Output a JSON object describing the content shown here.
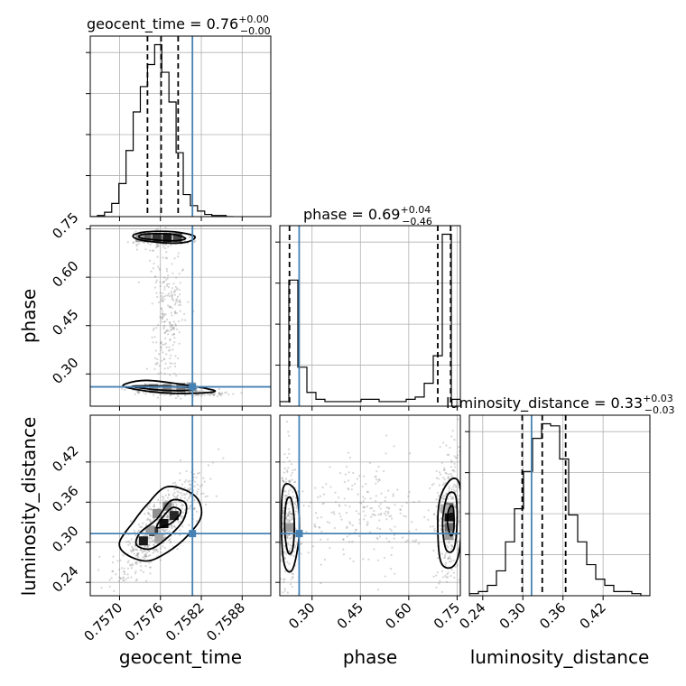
{
  "chart_data": {
    "type": "corner",
    "parameters": [
      "geocent_time",
      "phase",
      "luminosity_distance"
    ],
    "truth": {
      "geocent_time": 0.75807,
      "phase": 0.26,
      "luminosity_distance": 0.313
    },
    "colors": {
      "truth": "#4682b4",
      "hist": "#000000",
      "grid": "#b0b0b0",
      "scatter": "#888888"
    },
    "grid": true,
    "titles": [
      {
        "param": "geocent_time",
        "text": "geocent_time = 0.76",
        "sup": "+0.00",
        "sub": "−0.00"
      },
      {
        "param": "phase",
        "text": "phase = 0.69",
        "sup": "+0.04",
        "sub": "−0.46"
      },
      {
        "param": "luminosity_distance",
        "text": "luminosity_distance = 0.33",
        "sup": "+0.03",
        "sub": "−0.03"
      }
    ],
    "axes": {
      "geocent_time": {
        "label": "geocent_time",
        "range": [
          0.75657,
          0.75922
        ],
        "ticks": [
          0.757,
          0.7576,
          0.7582,
          0.7588
        ],
        "tick_labels": [
          "0.7570",
          "0.7576",
          "0.7582",
          "0.7588"
        ]
      },
      "phase": {
        "label": "phase",
        "range": [
          0.2,
          0.76
        ],
        "ticks": [
          0.3,
          0.45,
          0.6,
          0.75
        ],
        "tick_labels": [
          "0.30",
          "0.45",
          "0.60",
          "0.75"
        ]
      },
      "luminosity_distance": {
        "label": "luminosity_distance",
        "range": [
          0.22,
          0.49
        ],
        "ticks": [
          0.24,
          0.3,
          0.36,
          0.42
        ],
        "tick_labels": [
          "0.24",
          "0.30",
          "0.36",
          "0.42"
        ]
      }
    },
    "hist1d": {
      "geocent_time": {
        "bins": [
          0.75657,
          0.756675,
          0.75678,
          0.756885,
          0.75699,
          0.757095,
          0.7572,
          0.757305,
          0.75741,
          0.757515,
          0.75762,
          0.757725,
          0.75783,
          0.757935,
          0.75804,
          0.758145,
          0.75825,
          0.758355,
          0.75846,
          0.758565,
          0.75867
        ],
        "counts": [
          0,
          1,
          4,
          12,
          30,
          60,
          95,
          118,
          138,
          156,
          131,
          104,
          58,
          20,
          10,
          5,
          2,
          1,
          1,
          0
        ],
        "quantiles": [
          0.75741,
          0.75761,
          0.75786
        ]
      },
      "phase": {
        "bins": [
          0.2,
          0.228,
          0.256,
          0.284,
          0.312,
          0.34,
          0.368,
          0.396,
          0.424,
          0.452,
          0.48,
          0.508,
          0.536,
          0.564,
          0.592,
          0.62,
          0.648,
          0.676,
          0.704,
          0.732,
          0.76
        ],
        "counts": [
          2,
          55,
          17,
          6,
          3,
          2,
          2,
          2,
          2,
          3,
          3,
          2,
          2,
          2,
          3,
          4,
          10,
          22,
          75,
          3
        ],
        "quantiles": [
          0.23,
          0.69,
          0.73
        ]
      },
      "luminosity_distance": {
        "bins": [
          0.22,
          0.2335,
          0.247,
          0.2605,
          0.274,
          0.2875,
          0.301,
          0.3145,
          0.328,
          0.3415,
          0.355,
          0.3685,
          0.382,
          0.3955,
          0.409,
          0.4225,
          0.436,
          0.4495,
          0.463,
          0.4765,
          0.49
        ],
        "counts": [
          1,
          2,
          5,
          12,
          26,
          42,
          60,
          76,
          83,
          82,
          66,
          39,
          26,
          15,
          8,
          5,
          2,
          2,
          1,
          0
        ],
        "quantiles": [
          0.299,
          0.329,
          0.364
        ]
      }
    },
    "contours": {
      "phase|geocent_time": [
        [
          [
            0.7573,
            0.716
          ],
          [
            0.7577,
            0.706
          ],
          [
            0.758,
            0.71
          ],
          [
            0.7581,
            0.727
          ],
          [
            0.7578,
            0.741
          ],
          [
            0.7574,
            0.741
          ],
          [
            0.7572,
            0.73
          ]
        ],
        [
          [
            0.75732,
            0.721
          ],
          [
            0.75775,
            0.713
          ],
          [
            0.75797,
            0.72
          ],
          [
            0.75775,
            0.734
          ],
          [
            0.75735,
            0.733
          ]
        ],
        [
          [
            0.7571,
            0.258
          ],
          [
            0.7576,
            0.242
          ],
          [
            0.7581,
            0.24
          ],
          [
            0.7584,
            0.248
          ],
          [
            0.7579,
            0.268
          ],
          [
            0.7574,
            0.28
          ],
          [
            0.7571,
            0.27
          ]
        ],
        [
          [
            0.7572,
            0.26
          ],
          [
            0.7576,
            0.25
          ],
          [
            0.758,
            0.249
          ],
          [
            0.7581,
            0.256
          ],
          [
            0.7577,
            0.262
          ],
          [
            0.7573,
            0.263
          ]
        ]
      ],
      "luminosity_distance|geocent_time": [
        [
          [
            0.7571,
            0.282
          ],
          [
            0.7574,
            0.272
          ],
          [
            0.7577,
            0.285
          ],
          [
            0.758,
            0.31
          ],
          [
            0.7582,
            0.34
          ],
          [
            0.7581,
            0.37
          ],
          [
            0.7577,
            0.383
          ],
          [
            0.7574,
            0.356
          ],
          [
            0.7572,
            0.33
          ],
          [
            0.757,
            0.3
          ]
        ],
        [
          [
            0.75725,
            0.296
          ],
          [
            0.75745,
            0.29
          ],
          [
            0.75768,
            0.305
          ],
          [
            0.75793,
            0.332
          ],
          [
            0.75797,
            0.358
          ],
          [
            0.75775,
            0.362
          ],
          [
            0.75755,
            0.335
          ],
          [
            0.7573,
            0.314
          ]
        ],
        [
          [
            0.75755,
            0.322
          ],
          [
            0.75775,
            0.328
          ],
          [
            0.7579,
            0.345
          ],
          [
            0.75778,
            0.352
          ],
          [
            0.75762,
            0.336
          ]
        ]
      ],
      "luminosity_distance|phase": [
        [
          [
            0.205,
            0.32
          ],
          [
            0.215,
            0.265
          ],
          [
            0.24,
            0.26
          ],
          [
            0.26,
            0.31
          ],
          [
            0.255,
            0.365
          ],
          [
            0.235,
            0.385
          ],
          [
            0.21,
            0.38
          ]
        ],
        [
          [
            0.215,
            0.32
          ],
          [
            0.225,
            0.285
          ],
          [
            0.24,
            0.29
          ],
          [
            0.245,
            0.33
          ],
          [
            0.235,
            0.365
          ],
          [
            0.22,
            0.36
          ]
        ],
        [
          [
            0.69,
            0.33
          ],
          [
            0.7,
            0.27
          ],
          [
            0.74,
            0.265
          ],
          [
            0.76,
            0.3
          ],
          [
            0.76,
            0.38
          ],
          [
            0.735,
            0.395
          ],
          [
            0.7,
            0.37
          ]
        ],
        [
          [
            0.705,
            0.33
          ],
          [
            0.715,
            0.29
          ],
          [
            0.74,
            0.29
          ],
          [
            0.75,
            0.33
          ],
          [
            0.745,
            0.37
          ],
          [
            0.72,
            0.37
          ]
        ],
        [
          [
            0.72,
            0.33
          ],
          [
            0.73,
            0.31
          ],
          [
            0.74,
            0.32
          ],
          [
            0.738,
            0.352
          ],
          [
            0.725,
            0.35
          ]
        ]
      ]
    },
    "density_cells": {
      "phase|geocent_time": [
        [
          0.7574,
          0.723,
          0.6
        ],
        [
          0.75755,
          0.723,
          0.8
        ],
        [
          0.7577,
          0.723,
          0.9
        ],
        [
          0.75785,
          0.723,
          0.7
        ],
        [
          0.7573,
          0.723,
          0.35
        ],
        [
          0.7575,
          0.255,
          0.4
        ],
        [
          0.7577,
          0.255,
          0.45
        ],
        [
          0.7579,
          0.258,
          0.5
        ],
        [
          0.75805,
          0.26,
          0.3
        ]
      ],
      "luminosity_distance|geocent_time": [
        [
          0.75735,
          0.302,
          0.9
        ],
        [
          0.7575,
          0.316,
          0.8
        ],
        [
          0.75765,
          0.328,
          0.95
        ],
        [
          0.7578,
          0.34,
          0.85
        ],
        [
          0.7577,
          0.354,
          0.45
        ],
        [
          0.75755,
          0.343,
          0.4
        ],
        [
          0.75745,
          0.318,
          0.35
        ],
        [
          0.75758,
          0.305,
          0.3
        ]
      ],
      "luminosity_distance|phase": [
        [
          0.23,
          0.322,
          0.35
        ],
        [
          0.725,
          0.338,
          0.95
        ],
        [
          0.725,
          0.352,
          0.6
        ],
        [
          0.725,
          0.322,
          0.55
        ],
        [
          0.725,
          0.31,
          0.35
        ],
        [
          0.712,
          0.35,
          0.25
        ]
      ]
    },
    "scatter_clouds": {
      "phase|geocent_time": [
        {
          "cx": 0.7576,
          "cy": 0.72,
          "sx": 0.00018,
          "sy": 0.012,
          "n": 220
        },
        {
          "cx": 0.7577,
          "cy": 0.25,
          "sx": 0.00028,
          "sy": 0.008,
          "n": 220
        },
        {
          "cx": 0.7577,
          "cy": 0.5,
          "sx": 0.00012,
          "sy": 0.12,
          "n": 240
        },
        {
          "cx": 0.7582,
          "cy": 0.238,
          "sx": 0.0002,
          "sy": 0.004,
          "n": 60
        }
      ],
      "luminosity_distance|geocent_time": [
        {
          "cx": 0.7576,
          "cy": 0.325,
          "sx": 0.00032,
          "sy": 0.04,
          "n": 600,
          "corr": 0.85
        }
      ],
      "luminosity_distance|phase": [
        {
          "cx": 0.225,
          "cy": 0.33,
          "sx": 0.015,
          "sy": 0.045,
          "n": 250
        },
        {
          "cx": 0.725,
          "cy": 0.335,
          "sx": 0.022,
          "sy": 0.045,
          "n": 280
        },
        {
          "cx": 0.47,
          "cy": 0.345,
          "sx": 0.14,
          "sy": 0.04,
          "n": 260
        }
      ]
    }
  }
}
